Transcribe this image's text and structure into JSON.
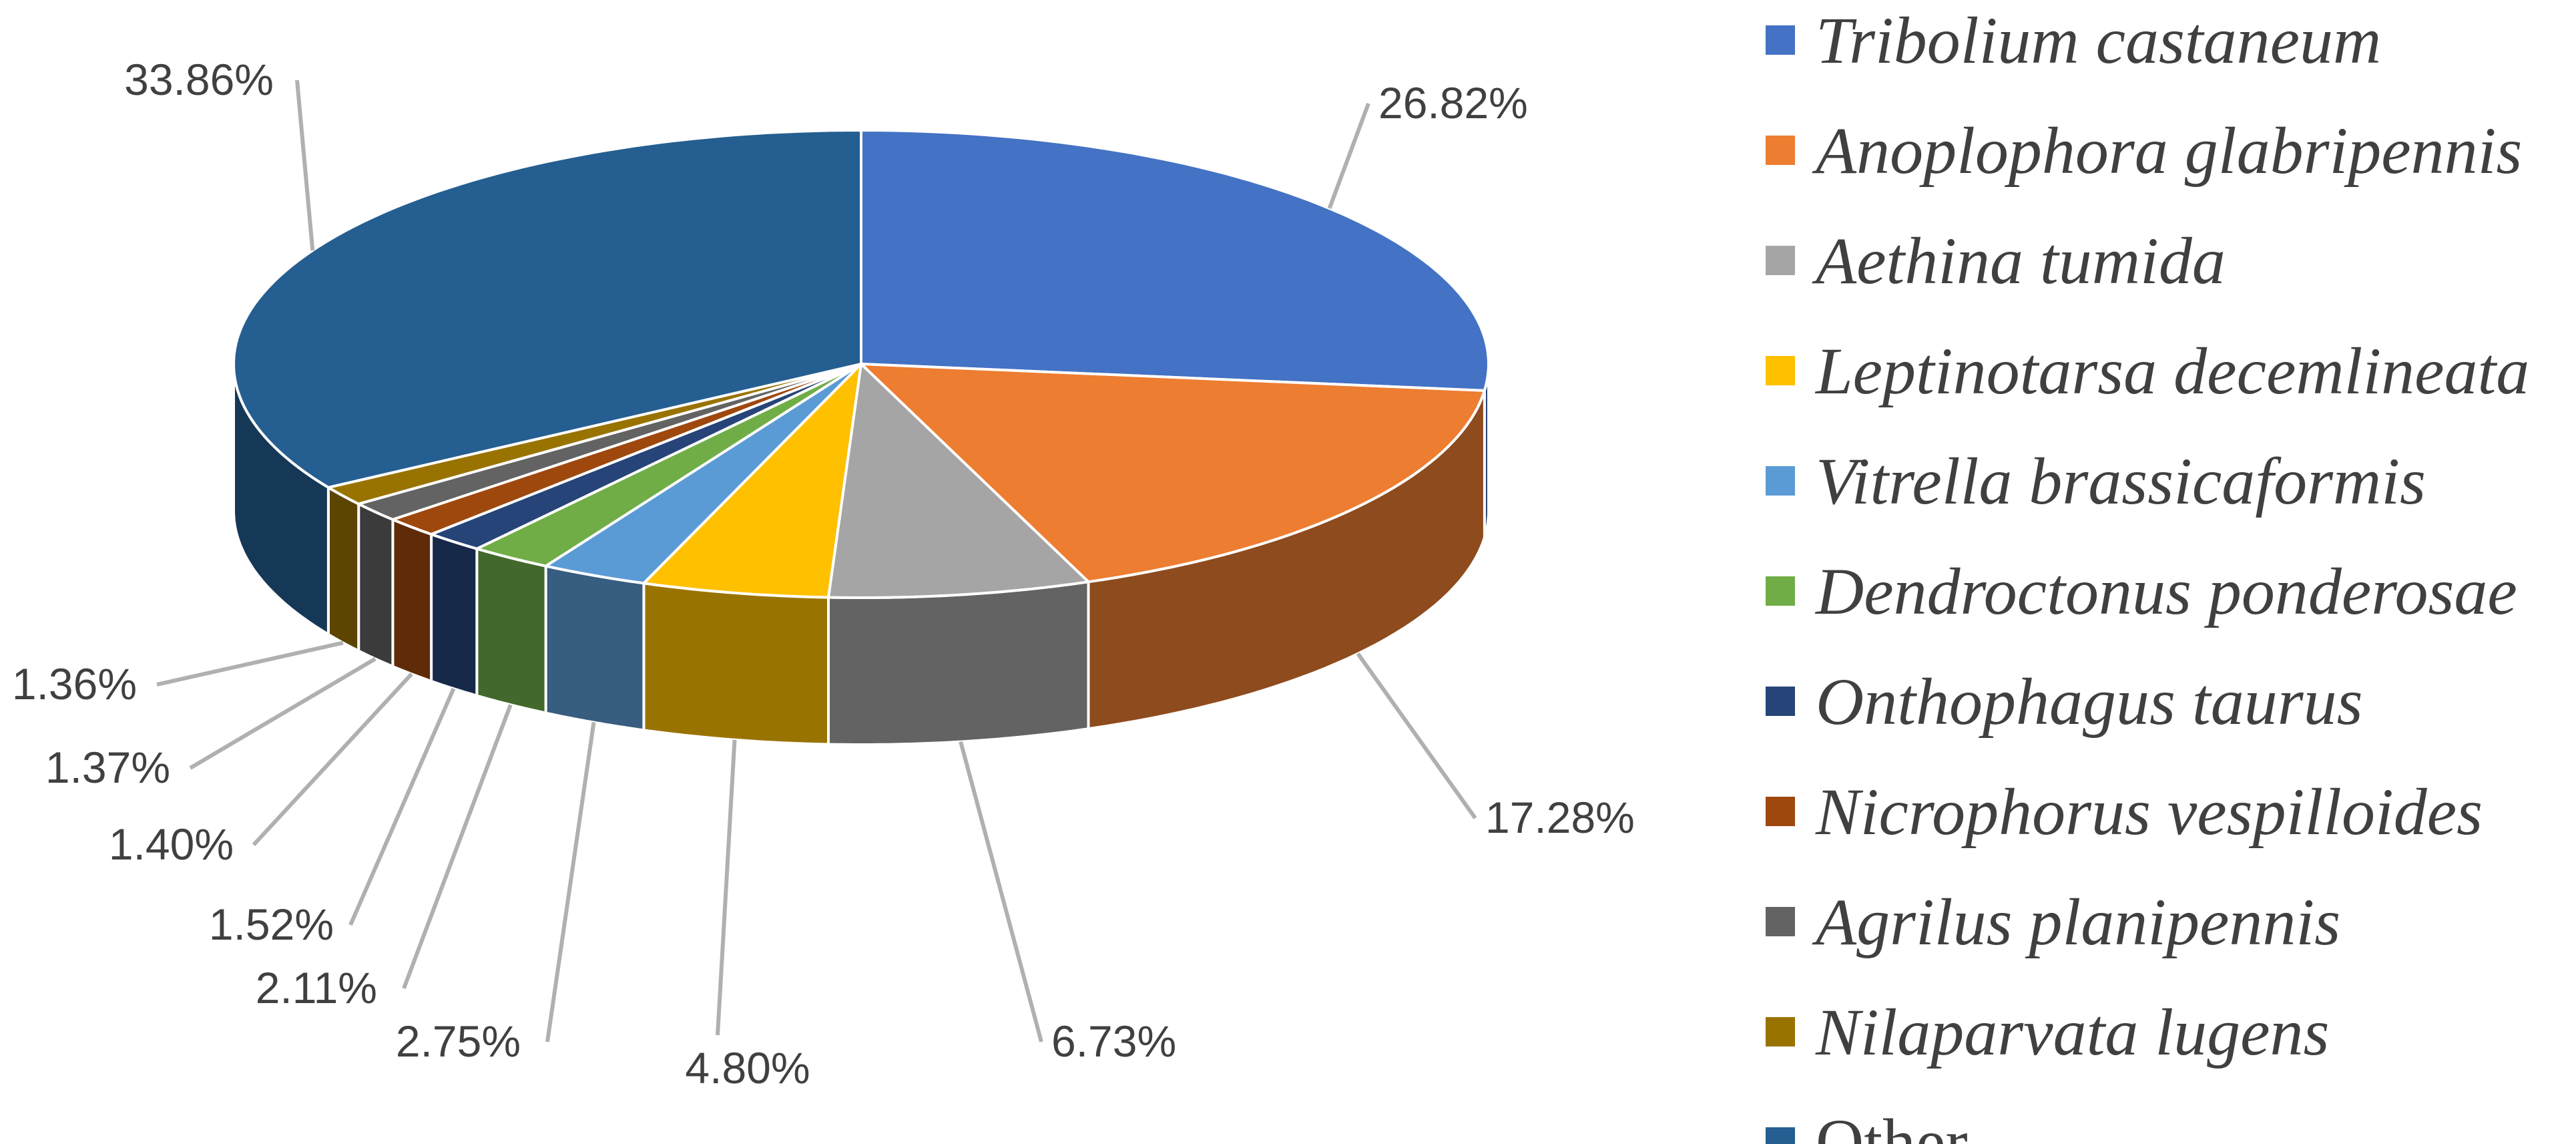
{
  "chart_data": {
    "type": "pie",
    "title": "",
    "legend_position": "right",
    "style": "3d",
    "categories": [
      "Tribolium castaneum",
      "Anoplophora glabripennis",
      "Aethina tumida",
      "Leptinotarsa decemlineata",
      "Vitrella brassicaformis",
      "Dendroctonus ponderosae",
      "Onthophagus taurus",
      "Nicrophorus vespilloides",
      "Agrilus planipennis",
      "Nilaparvata lugens",
      "Other"
    ],
    "values": [
      26.82,
      17.28,
      6.73,
      4.8,
      2.75,
      2.11,
      1.52,
      1.4,
      1.37,
      1.36,
      33.86
    ],
    "labels": [
      "26.82%",
      "17.28%",
      "6.73%",
      "4.80%",
      "2.75%",
      "2.11%",
      "1.52%",
      "1.40%",
      "1.37%",
      "1.36%",
      "33.86%"
    ],
    "italic": [
      true,
      true,
      true,
      true,
      true,
      true,
      true,
      true,
      true,
      true,
      false
    ],
    "colors": [
      "#4472C4",
      "#ED7D31",
      "#A5A5A5",
      "#FFC000",
      "#5B9BD5",
      "#70AD47",
      "#264478",
      "#9E480E",
      "#636363",
      "#997300",
      "#255E91"
    ]
  }
}
